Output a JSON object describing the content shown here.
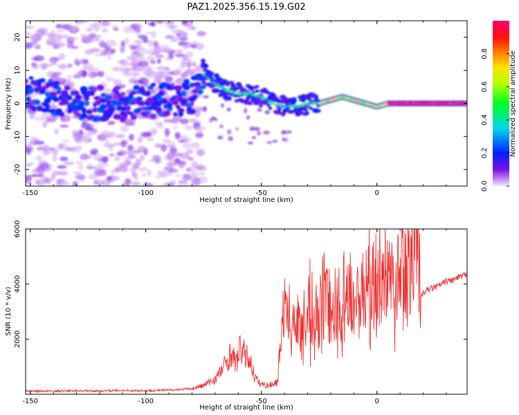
{
  "title": "PAZ1.2025.356.15.19.G02",
  "chart_data": [
    {
      "type": "heatmap",
      "title": "PAZ1.2025.356.15.19.G02",
      "xlabel": "Height of straight line (km)",
      "ylabel": "Frequency (Hz)",
      "xlim": [
        -152,
        39
      ],
      "ylim": [
        -25,
        25
      ],
      "xticks": [
        -150,
        -100,
        -50,
        0
      ],
      "yticks": [
        -20,
        -10,
        0,
        10,
        20
      ],
      "colorbar": {
        "label": "Normalized spectral amplitude",
        "range": [
          0,
          1
        ],
        "ticks": [
          0.0,
          0.2,
          0.4,
          0.6,
          0.8
        ],
        "tick_labels": [
          "0.0",
          "0.2",
          "0.4",
          "0.6",
          "0.8"
        ],
        "colors": [
          "#f2e6fa",
          "#6a00e0",
          "#0030ff",
          "#00e0e0",
          "#00ff00",
          "#ffff00",
          "#ff8000",
          "#ff0000",
          "#ff0070"
        ]
      },
      "ridge": {
        "x": [
          -152,
          -130,
          -110,
          -90,
          -80,
          -75,
          -70,
          -65,
          -60,
          -55,
          -50,
          -45,
          -40,
          -35,
          -30,
          -25,
          -20,
          -15,
          -10,
          -5,
          0,
          5,
          10,
          20,
          30,
          39
        ],
        "y": [
          4,
          0,
          0,
          1,
          2,
          9,
          6,
          4,
          3,
          3,
          2,
          0,
          -1,
          -1,
          0,
          0,
          1,
          2,
          1,
          0,
          -1,
          0,
          0,
          0,
          0,
          0
        ]
      }
    },
    {
      "type": "line",
      "xlabel": "Height of straight line (km)",
      "ylabel": "SNR (10 * v/v)",
      "xlim": [
        -152,
        39
      ],
      "ylim": [
        0,
        6000
      ],
      "xticks": [
        -150,
        -100,
        -50,
        0
      ],
      "yticks": [
        2000,
        4000,
        6000
      ],
      "color": "#ee3030",
      "series": [
        {
          "name": "SNR",
          "x": [
            -152,
            -140,
            -130,
            -120,
            -110,
            -100,
            -90,
            -80,
            -75,
            -70,
            -67,
            -65,
            -63,
            -61,
            -59,
            -57,
            -55,
            -53,
            -51,
            -49,
            -47,
            -45,
            -43,
            -41,
            -39,
            -37,
            -35,
            -33,
            -31,
            -29,
            -27,
            -25,
            -23,
            -21,
            -19,
            -17,
            -15,
            -13,
            -11,
            -9,
            -7,
            -5,
            -3,
            -1,
            1,
            3,
            5,
            7,
            9,
            11,
            13,
            15,
            17,
            18.5,
            19,
            21,
            24,
            27,
            30,
            33,
            36,
            39
          ],
          "y": [
            120,
            110,
            130,
            120,
            140,
            130,
            150,
            200,
            320,
            550,
            900,
            1200,
            1500,
            1100,
            1700,
            1400,
            1250,
            650,
            400,
            350,
            320,
            380,
            450,
            2800,
            3200,
            2400,
            3100,
            2500,
            2900,
            3400,
            2700,
            3000,
            3700,
            3300,
            3200,
            3600,
            3800,
            3400,
            3900,
            3700,
            3600,
            3900,
            4300,
            4200,
            4500,
            4300,
            4800,
            4600,
            5000,
            5200,
            5100,
            5300,
            5600,
            5950,
            3550,
            3750,
            3850,
            3950,
            4100,
            4150,
            4250,
            4350
          ]
        }
      ]
    }
  ]
}
